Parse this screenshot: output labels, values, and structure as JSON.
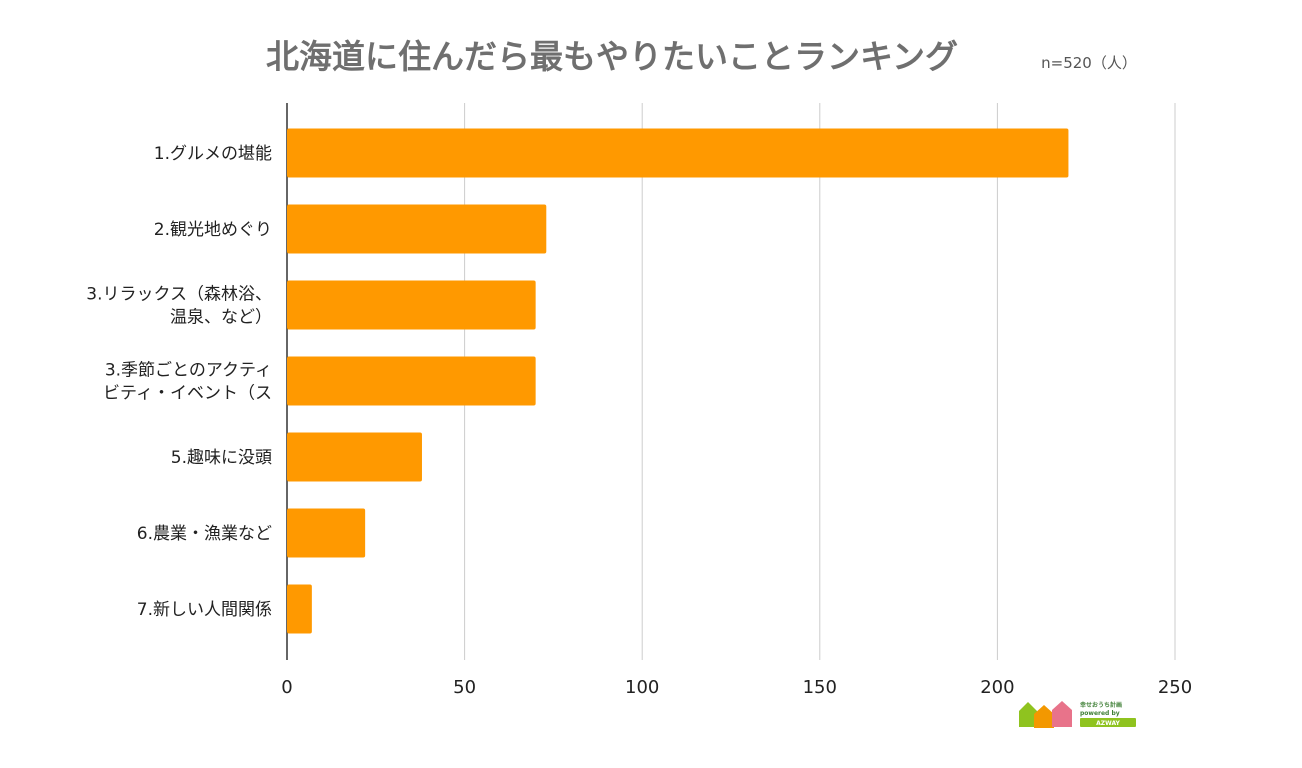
{
  "chart_data": {
    "type": "bar",
    "orientation": "horizontal",
    "title": "北海道に住んだら最もやりたいことランキング",
    "sample_note": "n=520（人）",
    "categories": [
      [
        "1.グルメの堪能"
      ],
      [
        "2.観光地めぐり"
      ],
      [
        "3.リラックス（森林浴、",
        "温泉、など）"
      ],
      [
        "3.季節ごとのアクティ",
        "ビティ・イベント（ス"
      ],
      [
        "5.趣味に没頭"
      ],
      [
        "6.農業・漁業など"
      ],
      [
        "7.新しい人間関係"
      ]
    ],
    "values": [
      220,
      73,
      70,
      70,
      38,
      22,
      7
    ],
    "xlim": [
      0,
      250
    ],
    "xticks": [
      0,
      50,
      100,
      150,
      200,
      250
    ],
    "grid": true,
    "bar_color": "#ff9900",
    "grid_color": "#cccccc",
    "axis_color": "#333333",
    "logo": {
      "line1": "幸せおうち計画",
      "line2": "powered by",
      "line3": "AZWAY",
      "colors": [
        "#8fc31f",
        "#f39800",
        "#e8738a"
      ]
    }
  }
}
